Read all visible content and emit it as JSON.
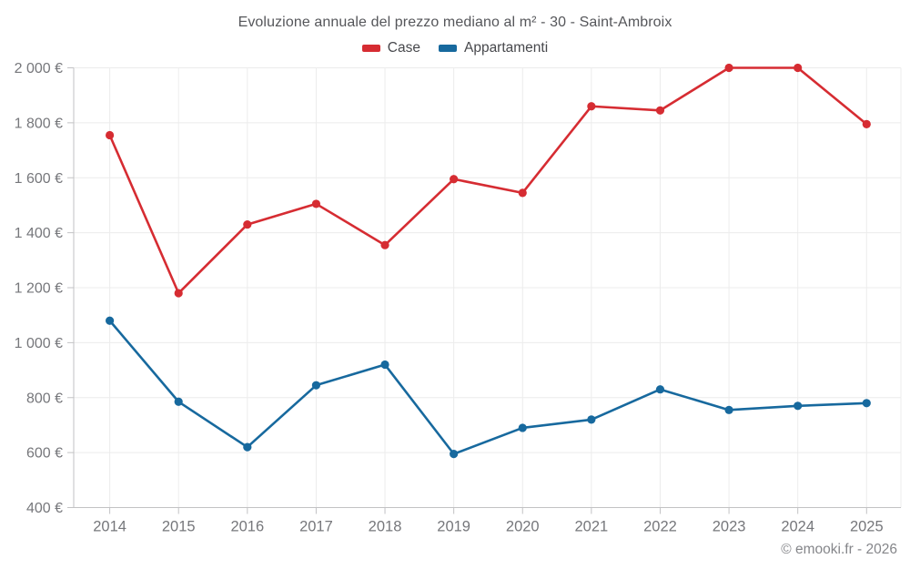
{
  "chart_data": {
    "type": "line",
    "title": "Evoluzione annuale del prezzo mediano al m² - 30 - Saint-Ambroix",
    "categories": [
      "2014",
      "2015",
      "2016",
      "2017",
      "2018",
      "2019",
      "2020",
      "2021",
      "2022",
      "2023",
      "2024",
      "2025"
    ],
    "series": [
      {
        "name": "Case",
        "color": "#d62c32",
        "values": [
          1755,
          1180,
          1430,
          1505,
          1355,
          1595,
          1545,
          1860,
          1845,
          2000,
          2000,
          1795
        ]
      },
      {
        "name": "Appartamenti",
        "color": "#17699e",
        "values": [
          1080,
          785,
          620,
          845,
          920,
          595,
          690,
          720,
          830,
          755,
          770,
          780
        ]
      }
    ],
    "ylim": [
      400,
      2000
    ],
    "y_ticks": [
      {
        "value": 400,
        "label": "400 €"
      },
      {
        "value": 600,
        "label": "600 €"
      },
      {
        "value": 800,
        "label": "800 €"
      },
      {
        "value": 1000,
        "label": "1 000 €"
      },
      {
        "value": 1200,
        "label": "1 200 €"
      },
      {
        "value": 1400,
        "label": "1 400 €"
      },
      {
        "value": 1600,
        "label": "1 600 €"
      },
      {
        "value": 1800,
        "label": "1 800 €"
      },
      {
        "value": 2000,
        "label": "2 000 €"
      }
    ],
    "grid": true,
    "legend_position": "top"
  },
  "footer": {
    "copyright": "© emooki.fr - 2026"
  },
  "palette": {
    "background": "#ffffff",
    "grid": "#ececec",
    "axis": "#c2c2c4",
    "title_text": "#55565a",
    "tick_text": "#76777b",
    "footer_text": "#85868a"
  }
}
